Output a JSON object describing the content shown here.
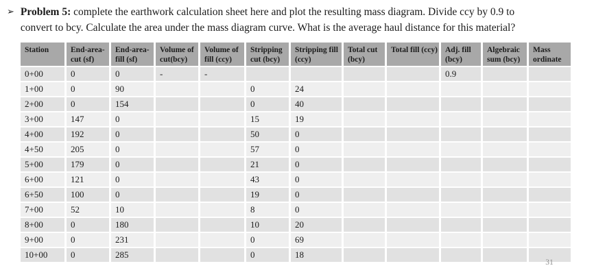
{
  "problem": {
    "bullet": "➢",
    "label": "Problem 5:",
    "line1": "complete the earthwork calculation sheet here and plot the resulting mass diagram. Divide ccy by 0.9 to",
    "line2": "convert to bcy. Calculate the area under the mass diagram curve. What is the average haul distance for this material?"
  },
  "table": {
    "columns": [
      "Station",
      "End-area-cut (sf)",
      "End-area-fill (sf)",
      "Volume of cut(bcy)",
      "Volume of fill (ccy)",
      "Stripping cut (bcy)",
      "Stripping fill (ccy)",
      "Total cut (bcy)",
      "Total fill (ccy)",
      "Adj. fill (bcy)",
      "Algebraic sum (bcy)",
      "Mass ordinate"
    ],
    "rows": [
      [
        "0+00",
        "0",
        "0",
        "-",
        "-",
        "",
        "",
        "",
        "",
        "0.9",
        "",
        ""
      ],
      [
        "1+00",
        "0",
        "90",
        "",
        "",
        "0",
        "24",
        "",
        "",
        "",
        "",
        ""
      ],
      [
        "2+00",
        "0",
        "154",
        "",
        "",
        "0",
        "40",
        "",
        "",
        "",
        "",
        ""
      ],
      [
        "3+00",
        "147",
        "0",
        "",
        "",
        "15",
        "19",
        "",
        "",
        "",
        "",
        ""
      ],
      [
        "4+00",
        "192",
        "0",
        "",
        "",
        "50",
        "0",
        "",
        "",
        "",
        "",
        ""
      ],
      [
        "4+50",
        "205",
        "0",
        "",
        "",
        "57",
        "0",
        "",
        "",
        "",
        "",
        ""
      ],
      [
        "5+00",
        "179",
        "0",
        "",
        "",
        "21",
        "0",
        "",
        "",
        "",
        "",
        ""
      ],
      [
        "6+00",
        "121",
        "0",
        "",
        "",
        "43",
        "0",
        "",
        "",
        "",
        "",
        ""
      ],
      [
        "6+50",
        "100",
        "0",
        "",
        "",
        "19",
        "0",
        "",
        "",
        "",
        "",
        ""
      ],
      [
        "7+00",
        "52",
        "10",
        "",
        "",
        "8",
        "0",
        "",
        "",
        "",
        "",
        ""
      ],
      [
        "8+00",
        "0",
        "180",
        "",
        "",
        "10",
        "20",
        "",
        "",
        "",
        "",
        ""
      ],
      [
        "9+00",
        "0",
        "231",
        "",
        "",
        "0",
        "69",
        "",
        "",
        "",
        "",
        ""
      ],
      [
        "10+00",
        "0",
        "285",
        "",
        "",
        "0",
        "18",
        "",
        "",
        "",
        "",
        ""
      ]
    ]
  },
  "page_number": "31",
  "colors": {
    "header_bg": "#a8a8a8",
    "row_dark": "#e1e1e1",
    "row_light": "#efefef",
    "page_bg": "#ffffff"
  }
}
